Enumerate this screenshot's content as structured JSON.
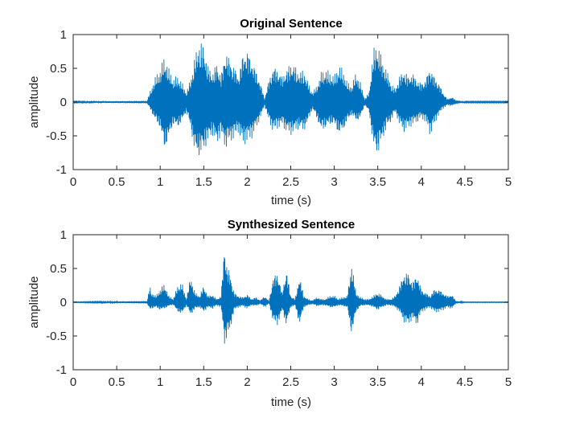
{
  "chart_data": [
    {
      "type": "line",
      "title": "Original Sentence",
      "xlabel": "time (s)",
      "ylabel": "amplitude",
      "xlim": [
        0,
        5
      ],
      "ylim": [
        -1,
        1
      ],
      "xticks": [
        0,
        0.5,
        1,
        1.5,
        2,
        2.5,
        3,
        3.5,
        4,
        4.5,
        5
      ],
      "xtick_labels": [
        "0",
        "0.5",
        "1",
        "1.5",
        "2",
        "2.5",
        "3",
        "3.5",
        "4",
        "4.5",
        "5"
      ],
      "yticks": [
        -1,
        -0.5,
        0,
        0.5,
        1
      ],
      "ytick_labels": [
        "-1",
        "-0.5",
        "0",
        "0.5",
        "1"
      ],
      "grid": false,
      "series": [
        {
          "color": "#0072BD",
          "style": "waveform envelope",
          "x": [
            0,
            0.85,
            0.88,
            0.95,
            1.0,
            1.05,
            1.1,
            1.15,
            1.2,
            1.25,
            1.3,
            1.35,
            1.4,
            1.45,
            1.5,
            1.55,
            1.6,
            1.65,
            1.7,
            1.75,
            1.8,
            1.85,
            1.9,
            1.95,
            2.0,
            2.05,
            2.1,
            2.15,
            2.2,
            2.25,
            2.3,
            2.35,
            2.4,
            2.45,
            2.5,
            2.55,
            2.6,
            2.65,
            2.7,
            2.75,
            2.8,
            2.85,
            2.9,
            2.95,
            3.0,
            3.05,
            3.1,
            3.15,
            3.2,
            3.25,
            3.3,
            3.35,
            3.4,
            3.45,
            3.5,
            3.55,
            3.6,
            3.65,
            3.7,
            3.75,
            3.8,
            3.85,
            3.9,
            3.95,
            4.0,
            4.05,
            4.1,
            4.15,
            4.2,
            4.25,
            4.3,
            4.35,
            4.4,
            4.5,
            4.8,
            5.0
          ],
          "upper": [
            0.01,
            0.02,
            0.15,
            0.4,
            0.5,
            0.7,
            0.5,
            0.35,
            0.4,
            0.3,
            0.15,
            0.35,
            0.7,
            0.93,
            0.85,
            0.55,
            0.45,
            0.6,
            0.4,
            0.8,
            0.65,
            0.55,
            0.4,
            0.75,
            0.8,
            0.65,
            0.5,
            0.3,
            0.05,
            0.35,
            0.55,
            0.5,
            0.4,
            0.5,
            0.6,
            0.55,
            0.45,
            0.5,
            0.3,
            0.15,
            0.25,
            0.45,
            0.5,
            0.45,
            0.4,
            0.55,
            0.5,
            0.3,
            0.25,
            0.45,
            0.3,
            0.05,
            0.15,
            0.8,
            0.9,
            0.65,
            0.5,
            0.3,
            0.2,
            0.4,
            0.5,
            0.4,
            0.45,
            0.35,
            0.3,
            0.35,
            0.55,
            0.4,
            0.3,
            0.15,
            0.05,
            0.08,
            0.03,
            0.01,
            0.01,
            0.01
          ],
          "lower": [
            -0.01,
            -0.02,
            -0.1,
            -0.3,
            -0.4,
            -0.75,
            -0.55,
            -0.35,
            -0.4,
            -0.3,
            -0.15,
            -0.4,
            -0.8,
            -0.82,
            -0.75,
            -0.6,
            -0.5,
            -0.65,
            -0.5,
            -0.7,
            -0.6,
            -0.55,
            -0.45,
            -0.65,
            -0.6,
            -0.55,
            -0.4,
            -0.25,
            -0.05,
            -0.3,
            -0.45,
            -0.4,
            -0.35,
            -0.45,
            -0.5,
            -0.45,
            -0.4,
            -0.45,
            -0.3,
            -0.1,
            -0.25,
            -0.45,
            -0.4,
            -0.35,
            -0.35,
            -0.5,
            -0.45,
            -0.3,
            -0.2,
            -0.3,
            -0.25,
            -0.05,
            -0.15,
            -0.7,
            -0.8,
            -0.6,
            -0.4,
            -0.3,
            -0.15,
            -0.35,
            -0.45,
            -0.4,
            -0.35,
            -0.3,
            -0.25,
            -0.3,
            -0.5,
            -0.35,
            -0.2,
            -0.1,
            -0.05,
            -0.06,
            -0.03,
            -0.01,
            -0.01,
            -0.01
          ]
        }
      ]
    },
    {
      "type": "line",
      "title": "Synthesized Sentence",
      "xlabel": "time (s)",
      "ylabel": "amplitude",
      "xlim": [
        0,
        5
      ],
      "ylim": [
        -1,
        1
      ],
      "xticks": [
        0,
        0.5,
        1,
        1.5,
        2,
        2.5,
        3,
        3.5,
        4,
        4.5,
        5
      ],
      "xtick_labels": [
        "0",
        "0.5",
        "1",
        "1.5",
        "2",
        "2.5",
        "3",
        "3.5",
        "4",
        "4.5",
        "5"
      ],
      "yticks": [
        -1,
        -0.5,
        0,
        0.5,
        1
      ],
      "ytick_labels": [
        "-1",
        "-0.5",
        "0",
        "0.5",
        "1"
      ],
      "grid": false,
      "series": [
        {
          "color": "#0072BD",
          "style": "waveform envelope",
          "x": [
            0,
            0.85,
            0.88,
            0.9,
            0.95,
            1.0,
            1.05,
            1.1,
            1.15,
            1.2,
            1.25,
            1.3,
            1.35,
            1.4,
            1.45,
            1.5,
            1.55,
            1.6,
            1.65,
            1.7,
            1.74,
            1.76,
            1.8,
            1.85,
            1.9,
            1.95,
            2.0,
            2.05,
            2.1,
            2.15,
            2.2,
            2.25,
            2.3,
            2.35,
            2.4,
            2.45,
            2.5,
            2.55,
            2.6,
            2.65,
            2.7,
            2.75,
            2.8,
            2.85,
            2.9,
            2.95,
            3.0,
            3.05,
            3.1,
            3.15,
            3.2,
            3.25,
            3.3,
            3.35,
            3.4,
            3.45,
            3.5,
            3.55,
            3.6,
            3.65,
            3.7,
            3.75,
            3.8,
            3.85,
            3.9,
            3.95,
            4.0,
            4.05,
            4.1,
            4.15,
            4.2,
            4.25,
            4.3,
            4.35,
            4.4,
            4.5,
            5.0
          ],
          "upper": [
            0.005,
            0.02,
            0.25,
            0.15,
            0.1,
            0.2,
            0.28,
            0.1,
            0.05,
            0.25,
            0.3,
            0.05,
            0.4,
            0.15,
            0.1,
            0.25,
            0.1,
            0.12,
            0.05,
            0.1,
            0.95,
            0.6,
            0.45,
            0.15,
            0.1,
            0.08,
            0.12,
            0.05,
            0.08,
            0.03,
            0.1,
            0.02,
            0.4,
            0.45,
            0.15,
            0.5,
            0.1,
            0.05,
            0.4,
            0.1,
            0.05,
            0.03,
            0.08,
            0.05,
            0.05,
            0.1,
            0.1,
            0.05,
            0.08,
            0.1,
            0.6,
            0.15,
            0.08,
            0.05,
            0.05,
            0.1,
            0.15,
            0.1,
            0.05,
            0.05,
            0.1,
            0.25,
            0.45,
            0.45,
            0.3,
            0.45,
            0.2,
            0.15,
            0.1,
            0.2,
            0.2,
            0.15,
            0.1,
            0.12,
            0.02,
            0.005,
            0.005
          ],
          "lower": [
            -0.005,
            -0.02,
            -0.12,
            -0.1,
            -0.08,
            -0.12,
            -0.1,
            -0.06,
            -0.04,
            -0.15,
            -0.18,
            -0.05,
            -0.2,
            -0.1,
            -0.08,
            -0.15,
            -0.08,
            -0.1,
            -0.05,
            -0.08,
            -0.65,
            -0.55,
            -0.45,
            -0.12,
            -0.08,
            -0.06,
            -0.1,
            -0.05,
            -0.06,
            -0.03,
            -0.08,
            -0.02,
            -0.3,
            -0.35,
            -0.12,
            -0.35,
            -0.08,
            -0.05,
            -0.35,
            -0.08,
            -0.05,
            -0.03,
            -0.06,
            -0.05,
            -0.05,
            -0.08,
            -0.08,
            -0.05,
            -0.06,
            -0.08,
            -0.5,
            -0.15,
            -0.06,
            -0.05,
            -0.05,
            -0.08,
            -0.12,
            -0.08,
            -0.05,
            -0.05,
            -0.08,
            -0.15,
            -0.3,
            -0.35,
            -0.25,
            -0.35,
            -0.15,
            -0.12,
            -0.08,
            -0.15,
            -0.15,
            -0.12,
            -0.08,
            -0.1,
            -0.02,
            -0.005,
            -0.005
          ]
        }
      ]
    }
  ]
}
